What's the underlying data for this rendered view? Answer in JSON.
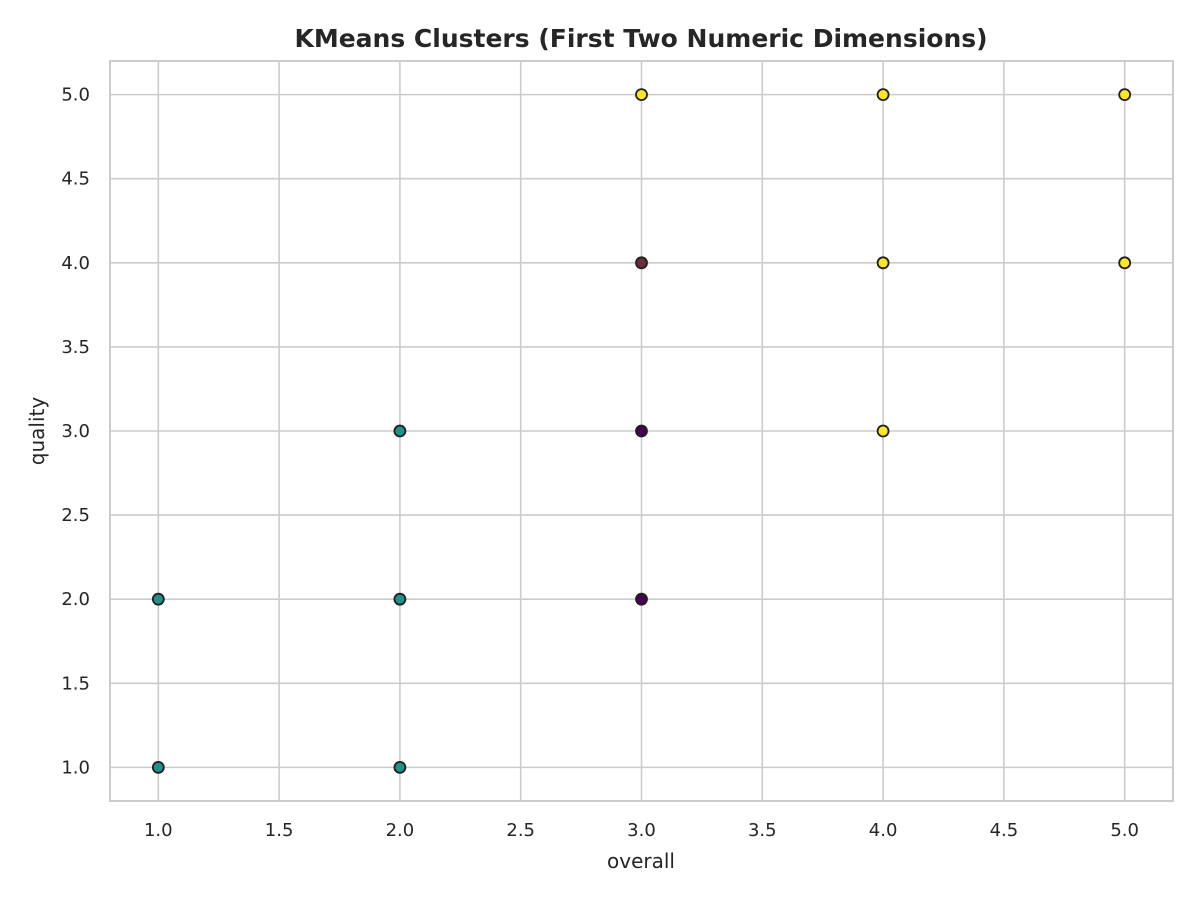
{
  "chart_data": {
    "type": "scatter",
    "title": "KMeans Clusters (First Two Numeric Dimensions)",
    "xlabel": "overall",
    "ylabel": "quality",
    "xlim": [
      0.8,
      5.2
    ],
    "ylim": [
      0.8,
      5.2
    ],
    "xticks": [
      1.0,
      1.5,
      2.0,
      2.5,
      3.0,
      3.5,
      4.0,
      4.5,
      5.0
    ],
    "yticks": [
      1.0,
      1.5,
      2.0,
      2.5,
      3.0,
      3.5,
      4.0,
      4.5,
      5.0
    ],
    "xtick_labels": [
      "1.0",
      "1.5",
      "2.0",
      "2.5",
      "3.0",
      "3.5",
      "4.0",
      "4.5",
      "5.0"
    ],
    "ytick_labels": [
      "1.0",
      "1.5",
      "2.0",
      "2.5",
      "3.0",
      "3.5",
      "4.0",
      "4.5",
      "5.0"
    ],
    "grid": true,
    "legend": "none",
    "series": [
      {
        "color": "#440154",
        "points": [
          [
            3,
            3
          ],
          [
            3,
            2
          ]
        ]
      },
      {
        "color": "#21918c",
        "points": [
          [
            1,
            2
          ],
          [
            1,
            1
          ],
          [
            2,
            3
          ],
          [
            2,
            2
          ],
          [
            2,
            1
          ]
        ]
      },
      {
        "color": "#fde725",
        "points": [
          [
            3,
            5
          ],
          [
            4,
            5
          ],
          [
            5,
            5
          ],
          [
            4,
            4
          ],
          [
            5,
            4
          ],
          [
            4,
            3
          ]
        ]
      },
      {
        "color": "#6b2e3a",
        "points": [
          [
            3,
            4
          ]
        ]
      }
    ]
  }
}
